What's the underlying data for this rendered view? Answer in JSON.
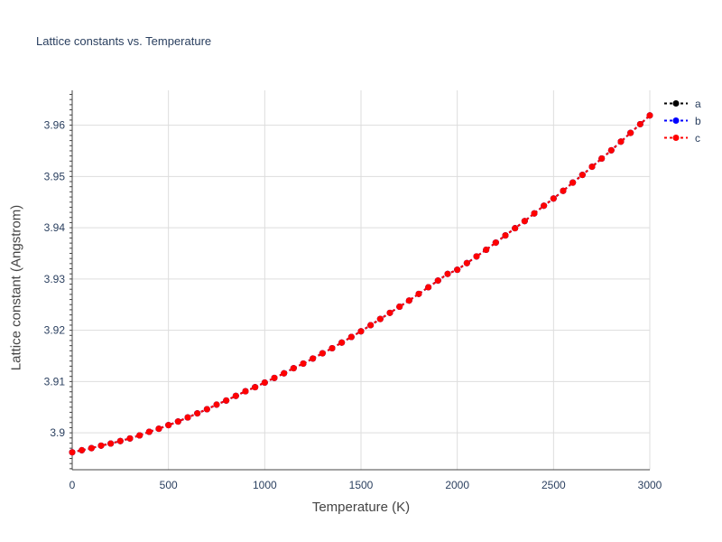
{
  "chart_data": {
    "type": "line",
    "title": "Lattice constants vs. Temperature",
    "xlabel": "Temperature (K)",
    "ylabel": "Lattice constant (Angstrom)",
    "xlim": [
      0,
      3000
    ],
    "ylim": [
      3.8928,
      3.9668
    ],
    "xticks": [
      0,
      500,
      1000,
      1500,
      2000,
      2500,
      3000
    ],
    "xtick_labels": [
      "0",
      "500",
      "1000",
      "1500",
      "2000",
      "2500",
      "3000"
    ],
    "yticks": [
      3.9,
      3.91,
      3.92,
      3.93,
      3.94,
      3.95,
      3.96
    ],
    "ytick_labels": [
      "3.9",
      "3.91",
      "3.92",
      "3.93",
      "3.94",
      "3.95",
      "3.96"
    ],
    "grid": true,
    "legend_position": "top-right",
    "x": [
      0,
      50,
      100,
      150,
      200,
      250,
      300,
      350,
      400,
      450,
      500,
      550,
      600,
      650,
      700,
      750,
      800,
      850,
      900,
      950,
      1000,
      1050,
      1100,
      1150,
      1200,
      1250,
      1300,
      1350,
      1400,
      1450,
      1500,
      1550,
      1600,
      1650,
      1700,
      1750,
      1800,
      1850,
      1900,
      1950,
      2000,
      2050,
      2100,
      2150,
      2200,
      2250,
      2300,
      2350,
      2400,
      2450,
      2500,
      2550,
      2600,
      2650,
      2700,
      2750,
      2800,
      2850,
      2900,
      2950,
      3000
    ],
    "series": [
      {
        "name": "a",
        "color": "#000000",
        "values": [
          3.8962,
          3.8966,
          3.897,
          3.8975,
          3.8979,
          3.8984,
          3.8989,
          3.8995,
          3.9002,
          3.9008,
          3.9015,
          3.9022,
          3.903,
          3.9038,
          3.9046,
          3.9055,
          3.9063,
          3.9072,
          3.9081,
          3.9089,
          3.9098,
          3.9107,
          3.9116,
          3.9126,
          3.9135,
          3.9145,
          3.9155,
          3.9165,
          3.9176,
          3.9187,
          3.9198,
          3.921,
          3.9222,
          3.9234,
          3.9246,
          3.9258,
          3.9271,
          3.9284,
          3.9297,
          3.931,
          3.9318,
          3.9331,
          3.9344,
          3.9357,
          3.9371,
          3.9385,
          3.9399,
          3.9413,
          3.9428,
          3.9443,
          3.9457,
          3.9472,
          3.9488,
          3.9503,
          3.9519,
          3.9535,
          3.9551,
          3.9568,
          3.9585,
          3.9602,
          3.9619
        ]
      },
      {
        "name": "b",
        "color": "#0000ff",
        "values": [
          3.8962,
          3.8966,
          3.897,
          3.8975,
          3.8979,
          3.8984,
          3.8989,
          3.8995,
          3.9002,
          3.9008,
          3.9015,
          3.9022,
          3.903,
          3.9038,
          3.9046,
          3.9055,
          3.9063,
          3.9072,
          3.9081,
          3.9089,
          3.9098,
          3.9107,
          3.9116,
          3.9126,
          3.9135,
          3.9145,
          3.9155,
          3.9165,
          3.9176,
          3.9187,
          3.9198,
          3.921,
          3.9222,
          3.9234,
          3.9246,
          3.9258,
          3.9271,
          3.9284,
          3.9297,
          3.931,
          3.9318,
          3.9331,
          3.9344,
          3.9357,
          3.9371,
          3.9385,
          3.9399,
          3.9413,
          3.9428,
          3.9443,
          3.9457,
          3.9472,
          3.9488,
          3.9503,
          3.9519,
          3.9535,
          3.9551,
          3.9568,
          3.9585,
          3.9602,
          3.9619
        ]
      },
      {
        "name": "c",
        "color": "#ff0000",
        "values": [
          3.8962,
          3.8966,
          3.897,
          3.8975,
          3.8979,
          3.8984,
          3.8989,
          3.8995,
          3.9002,
          3.9008,
          3.9015,
          3.9022,
          3.903,
          3.9038,
          3.9046,
          3.9055,
          3.9063,
          3.9072,
          3.9081,
          3.9089,
          3.9098,
          3.9107,
          3.9116,
          3.9126,
          3.9135,
          3.9145,
          3.9155,
          3.9165,
          3.9176,
          3.9187,
          3.9198,
          3.921,
          3.9222,
          3.9234,
          3.9246,
          3.9258,
          3.9271,
          3.9284,
          3.9297,
          3.931,
          3.9318,
          3.9331,
          3.9344,
          3.9357,
          3.9371,
          3.9385,
          3.9399,
          3.9413,
          3.9428,
          3.9443,
          3.9457,
          3.9472,
          3.9488,
          3.9503,
          3.9519,
          3.9535,
          3.9551,
          3.9568,
          3.9585,
          3.9602,
          3.9619
        ]
      }
    ]
  }
}
